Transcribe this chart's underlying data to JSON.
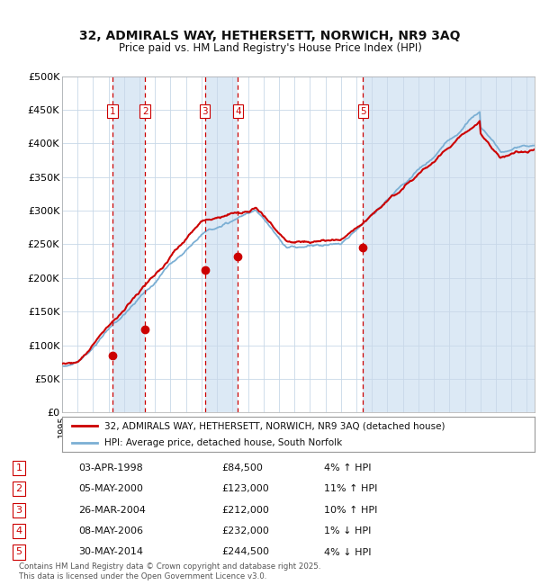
{
  "title1": "32, ADMIRALS WAY, HETHERSETT, NORWICH, NR9 3AQ",
  "title2": "Price paid vs. HM Land Registry's House Price Index (HPI)",
  "ylim": [
    0,
    500000
  ],
  "yticks": [
    0,
    50000,
    100000,
    150000,
    200000,
    250000,
    300000,
    350000,
    400000,
    450000,
    500000
  ],
  "ytick_labels": [
    "£0",
    "£50K",
    "£100K",
    "£150K",
    "£200K",
    "£250K",
    "£300K",
    "£350K",
    "£400K",
    "£450K",
    "£500K"
  ],
  "background_color": "#ffffff",
  "plot_bg_color": "#ffffff",
  "shade_color": "#dce9f5",
  "grid_color": "#c8d8e8",
  "hpi_color": "#7bafd4",
  "price_color": "#cc0000",
  "sale_marker_color": "#cc0000",
  "vline_color": "#cc0000",
  "legend_label_price": "32, ADMIRALS WAY, HETHERSETT, NORWICH, NR9 3AQ (detached house)",
  "legend_label_hpi": "HPI: Average price, detached house, South Norfolk",
  "sales": [
    {
      "num": 1,
      "date": "03-APR-1998",
      "price": 84500,
      "pct": "4%",
      "dir": "↑",
      "year": 1998.25
    },
    {
      "num": 2,
      "date": "05-MAY-2000",
      "price": 123000,
      "pct": "11%",
      "dir": "↑",
      "year": 2000.35
    },
    {
      "num": 3,
      "date": "26-MAR-2004",
      "price": 212000,
      "pct": "10%",
      "dir": "↑",
      "year": 2004.23
    },
    {
      "num": 4,
      "date": "08-MAY-2006",
      "price": 232000,
      "pct": "1%",
      "dir": "↓",
      "year": 2006.35
    },
    {
      "num": 5,
      "date": "30-MAY-2014",
      "price": 244500,
      "pct": "4%",
      "dir": "↓",
      "year": 2014.41
    }
  ],
  "footer": "Contains HM Land Registry data © Crown copyright and database right 2025.\nThis data is licensed under the Open Government Licence v3.0.",
  "start_year": 1995.0,
  "end_year": 2025.5
}
